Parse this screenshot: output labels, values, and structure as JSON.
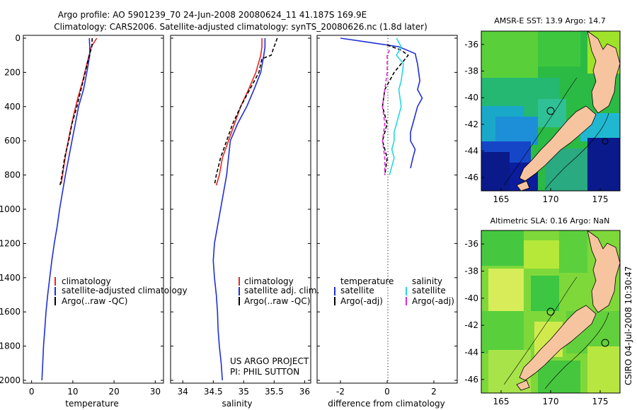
{
  "title": {
    "line1": "Argo profile: AO 5901239_70 24-Jun-2008 20080624_11 41.187S 169.9E",
    "line2": "Climatology: CARS2006. Satellite-adjusted climatology: synTS_20080626.nc (1.8d later)"
  },
  "side_label": "CSIRO 04-Jul-2008 10:30:47",
  "colors": {
    "climatology": "#e8251f",
    "satellite": "#1f2fd6",
    "argo": "#000000",
    "sal_satellite": "#22d8e0",
    "sal_argo": "#e028d4",
    "land": "#f7c4a0"
  },
  "chart_data": [
    {
      "type": "line",
      "panel": "temperature",
      "xlabel": "temperature",
      "ylabel": "",
      "xlim": [
        -2,
        32
      ],
      "ylim": [
        2050,
        0
      ],
      "x_ticks": [
        "0",
        "10",
        "20",
        "30"
      ],
      "y_ticks": [
        "0",
        "200",
        "400",
        "600",
        "800",
        "1000",
        "1200",
        "1400",
        "1600",
        "1800",
        "2000"
      ],
      "legend": [
        "climatology",
        "satellite-adjusted climatology",
        "Argo(..raw -QC)"
      ],
      "series": [
        {
          "name": "climatology",
          "color": "#e8251f",
          "style": "solid",
          "points": [
            [
              15.8,
              0
            ],
            [
              14.5,
              50
            ],
            [
              13.4,
              150
            ],
            [
              12.4,
              250
            ],
            [
              11.2,
              350
            ],
            [
              10.2,
              450
            ],
            [
              9.3,
              550
            ],
            [
              8.5,
              650
            ],
            [
              7.8,
              750
            ],
            [
              7.2,
              850
            ]
          ]
        },
        {
          "name": "satellite-adjusted climatology",
          "color": "#1f2fd6",
          "style": "solid",
          "points": [
            [
              14.0,
              0
            ],
            [
              14.1,
              50
            ],
            [
              14.1,
              100
            ],
            [
              13.4,
              200
            ],
            [
              12.6,
              300
            ],
            [
              11.4,
              400
            ],
            [
              10.6,
              500
            ],
            [
              9.8,
              600
            ],
            [
              9.0,
              700
            ],
            [
              8.2,
              800
            ],
            [
              7.5,
              900
            ],
            [
              6.8,
              1000
            ],
            [
              6.2,
              1100
            ],
            [
              5.5,
              1200
            ],
            [
              4.9,
              1300
            ],
            [
              4.4,
              1400
            ],
            [
              3.9,
              1500
            ],
            [
              3.5,
              1600
            ],
            [
              3.2,
              1700
            ],
            [
              2.9,
              1800
            ],
            [
              2.7,
              1900
            ],
            [
              2.5,
              2000
            ]
          ]
        },
        {
          "name": "Argo(..raw -QC)",
          "color": "#000000",
          "style": "dashed",
          "points": [
            [
              14.7,
              0
            ],
            [
              14.6,
              50
            ],
            [
              14.0,
              100
            ],
            [
              13.0,
              200
            ],
            [
              12.0,
              300
            ],
            [
              11.0,
              400
            ],
            [
              9.8,
              500
            ],
            [
              9.0,
              600
            ],
            [
              8.0,
              700
            ],
            [
              7.4,
              800
            ],
            [
              6.9,
              860
            ]
          ]
        }
      ]
    },
    {
      "type": "line",
      "panel": "salinity",
      "xlabel": "salinity",
      "ylabel": "",
      "xlim": [
        33.8,
        36.1
      ],
      "ylim": [
        2050,
        0
      ],
      "x_ticks": [
        "34",
        "34.5",
        "35",
        "35.5",
        "36"
      ],
      "y_ticks": [],
      "legend": [
        "climatology",
        "satellite adj. clim.",
        "Argo(..raw -QC)"
      ],
      "annotation": [
        "US ARGO PROJECT",
        "PI: PHIL SUTTON"
      ],
      "series": [
        {
          "name": "climatology",
          "color": "#e8251f",
          "style": "solid",
          "points": [
            [
              35.3,
              0
            ],
            [
              35.3,
              50
            ],
            [
              35.28,
              100
            ],
            [
              35.2,
              200
            ],
            [
              35.08,
              300
            ],
            [
              34.95,
              400
            ],
            [
              34.85,
              500
            ],
            [
              34.75,
              600
            ],
            [
              34.65,
              700
            ],
            [
              34.6,
              800
            ],
            [
              34.55,
              860
            ]
          ]
        },
        {
          "name": "satellite adj. clim.",
          "color": "#1f2fd6",
          "style": "solid",
          "points": [
            [
              35.35,
              0
            ],
            [
              35.35,
              50
            ],
            [
              35.33,
              100
            ],
            [
              35.28,
              200
            ],
            [
              35.17,
              300
            ],
            [
              35.05,
              400
            ],
            [
              34.9,
              500
            ],
            [
              34.78,
              600
            ],
            [
              34.75,
              700
            ],
            [
              34.72,
              800
            ],
            [
              34.67,
              900
            ],
            [
              34.62,
              1000
            ],
            [
              34.57,
              1100
            ],
            [
              34.52,
              1200
            ],
            [
              34.5,
              1300
            ],
            [
              34.52,
              1400
            ],
            [
              34.55,
              1500
            ],
            [
              34.57,
              1600
            ],
            [
              34.58,
              1700
            ],
            [
              34.6,
              1800
            ],
            [
              34.63,
              1900
            ],
            [
              34.65,
              2000
            ]
          ]
        },
        {
          "name": "Argo(..raw -QC)",
          "color": "#000000",
          "style": "dashed",
          "points": [
            [
              35.55,
              0
            ],
            [
              35.5,
              50
            ],
            [
              35.45,
              100
            ],
            [
              35.3,
              120
            ],
            [
              35.25,
              200
            ],
            [
              35.1,
              300
            ],
            [
              34.95,
              400
            ],
            [
              34.82,
              500
            ],
            [
              34.72,
              600
            ],
            [
              34.62,
              700
            ],
            [
              34.55,
              800
            ],
            [
              34.52,
              860
            ]
          ]
        }
      ]
    },
    {
      "type": "line",
      "panel": "difference",
      "xlabel": "difference from climatology",
      "ylabel": "",
      "xlim": [
        -3,
        3
      ],
      "ylim": [
        2050,
        0
      ],
      "x_ticks": [
        "-2",
        "0",
        "2"
      ],
      "y_ticks": [],
      "legend": [
        "temperature",
        "satellite",
        "Argo(-adj)",
        "salinity",
        "satellite",
        "Argo(-adj)"
      ],
      "series": [
        {
          "name": "temperature satellite",
          "color": "#1f2fd6",
          "style": "solid",
          "points": [
            [
              -2.0,
              0
            ],
            [
              -1.0,
              20
            ],
            [
              0.5,
              50
            ],
            [
              1.2,
              90
            ],
            [
              1.3,
              150
            ],
            [
              1.4,
              250
            ],
            [
              1.3,
              300
            ],
            [
              1.5,
              350
            ],
            [
              1.3,
              400
            ],
            [
              1.2,
              450
            ],
            [
              1.1,
              500
            ],
            [
              1.0,
              550
            ],
            [
              1.0,
              600
            ],
            [
              1.2,
              650
            ],
            [
              1.1,
              700
            ],
            [
              1.0,
              760
            ]
          ]
        },
        {
          "name": "temperature Argo(-adj)",
          "color": "#000000",
          "style": "dashed",
          "points": [
            [
              0.0,
              40
            ],
            [
              0.6,
              70
            ],
            [
              0.9,
              100
            ],
            [
              0.3,
              200
            ],
            [
              -0.1,
              300
            ],
            [
              -0.2,
              400
            ],
            [
              0.0,
              500
            ],
            [
              -0.2,
              600
            ],
            [
              0.0,
              700
            ],
            [
              -0.1,
              800
            ]
          ]
        },
        {
          "name": "salinity satellite",
          "color": "#22d8e0",
          "style": "solid",
          "points": [
            [
              0.4,
              0
            ],
            [
              0.6,
              50
            ],
            [
              0.4,
              100
            ],
            [
              0.7,
              150
            ],
            [
              0.6,
              250
            ],
            [
              0.5,
              300
            ],
            [
              0.6,
              400
            ],
            [
              0.5,
              450
            ],
            [
              0.4,
              500
            ],
            [
              0.3,
              550
            ],
            [
              0.3,
              600
            ],
            [
              0.2,
              650
            ],
            [
              0.3,
              700
            ],
            [
              0.1,
              800
            ]
          ]
        },
        {
          "name": "salinity Argo(-adj)",
          "color": "#e028d4",
          "style": "dashed",
          "points": [
            [
              0.1,
              70
            ],
            [
              0.0,
              100
            ],
            [
              0.0,
              200
            ],
            [
              -0.1,
              300
            ],
            [
              -0.2,
              400
            ],
            [
              -0.1,
              500
            ],
            [
              -0.2,
              600
            ],
            [
              -0.1,
              700
            ],
            [
              -0.1,
              800
            ]
          ]
        }
      ]
    },
    {
      "type": "heatmap",
      "panel": "map-sst",
      "title": "AMSR-E SST: 13.9 Argo: 14.7",
      "xlim": [
        163,
        177
      ],
      "ylim": [
        -47,
        -35
      ],
      "x_ticks": [
        "165",
        "170",
        "175"
      ],
      "y_ticks": [
        "-36",
        "-38",
        "-40",
        "-42",
        "-44",
        "-46"
      ],
      "markers": [
        [
          169.9,
          -41.2
        ],
        [
          175.0,
          -43.4
        ]
      ]
    },
    {
      "type": "heatmap",
      "panel": "map-sla",
      "title": "Altimetric SLA: 0.16 Argo: NaN",
      "xlim": [
        163,
        177
      ],
      "ylim": [
        -47,
        -35
      ],
      "x_ticks": [
        "165",
        "170",
        "175"
      ],
      "y_ticks": [
        "-36",
        "-38",
        "-40",
        "-42",
        "-44",
        "-46"
      ],
      "markers": [
        [
          169.9,
          -41.2
        ],
        [
          175.0,
          -43.4
        ]
      ]
    }
  ]
}
